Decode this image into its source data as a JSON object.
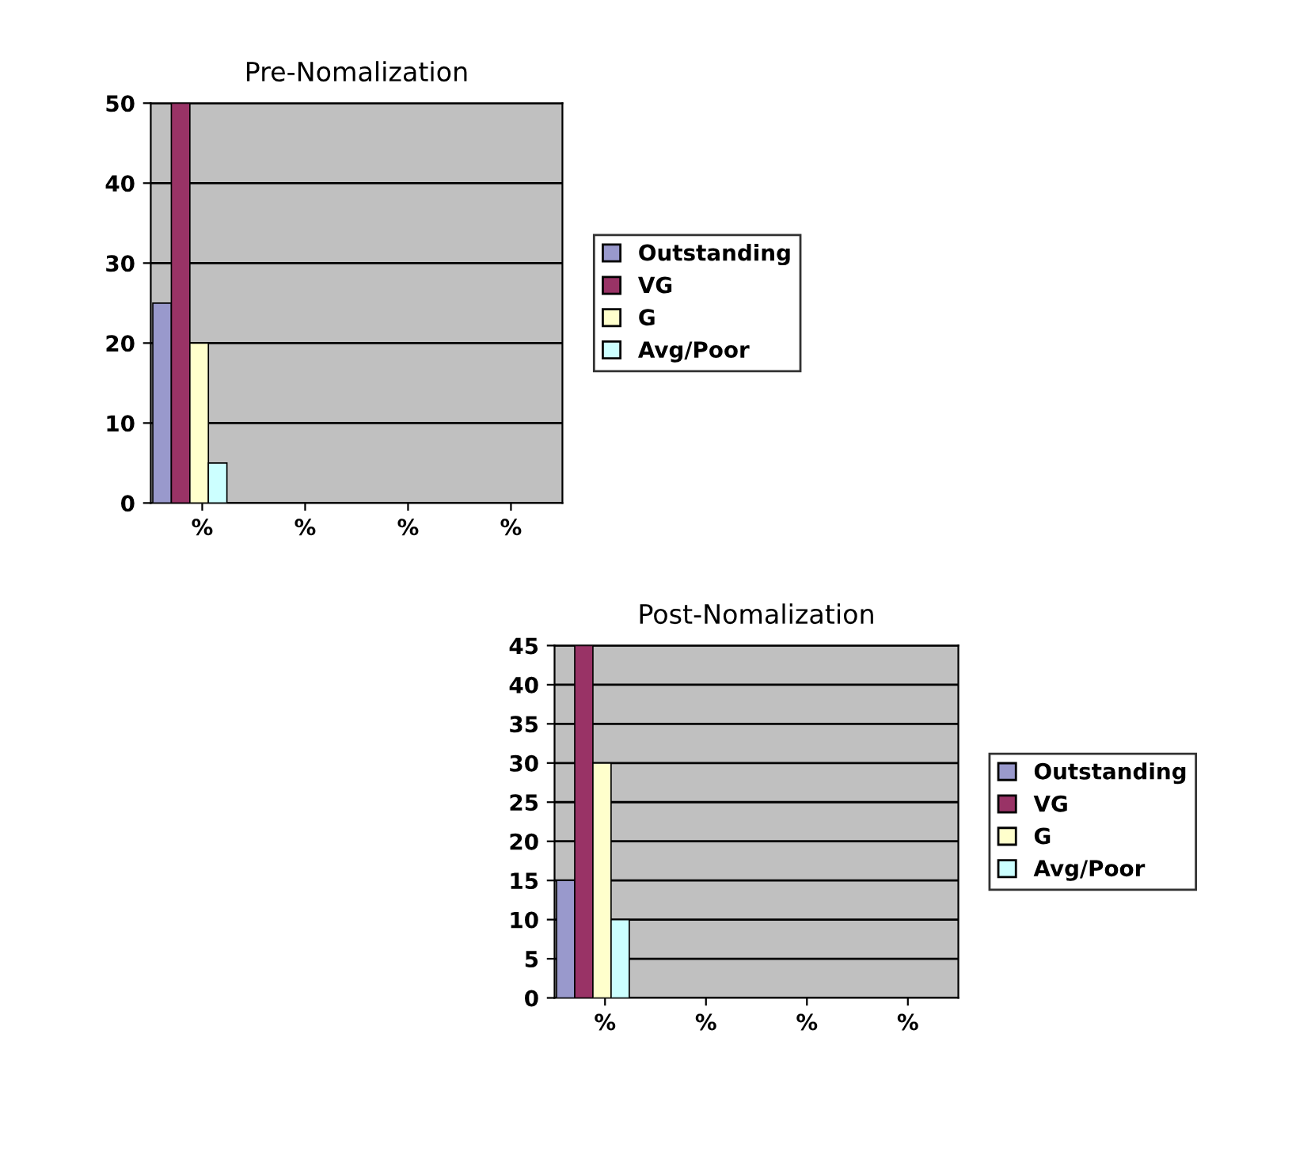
{
  "chart_data": [
    {
      "type": "bar",
      "title": "Pre-Nomalization",
      "categories": [
        "%",
        "%",
        "%",
        "%"
      ],
      "ylim": [
        0,
        50
      ],
      "yticks": [
        0,
        10,
        20,
        30,
        40,
        50
      ],
      "grid": "y",
      "legend": "right",
      "series": [
        {
          "name": "Outstanding",
          "color": "#9999cc",
          "values": [
            25,
            null,
            null,
            null
          ]
        },
        {
          "name": "VG",
          "color": "#993366",
          "values": [
            50,
            null,
            null,
            null
          ]
        },
        {
          "name": "G",
          "color": "#ffffcc",
          "values": [
            20,
            null,
            null,
            null
          ]
        },
        {
          "name": "Avg/Poor",
          "color": "#ccffff",
          "values": [
            5,
            null,
            null,
            null
          ]
        }
      ]
    },
    {
      "type": "bar",
      "title": "Post-Nomalization",
      "categories": [
        "%",
        "%",
        "%",
        "%"
      ],
      "ylim": [
        0,
        45
      ],
      "yticks": [
        0,
        5,
        10,
        15,
        20,
        25,
        30,
        35,
        40,
        45
      ],
      "grid": "y",
      "legend": "right",
      "series": [
        {
          "name": "Outstanding",
          "color": "#9999cc",
          "values": [
            15,
            null,
            null,
            null
          ]
        },
        {
          "name": "VG",
          "color": "#993366",
          "values": [
            45,
            null,
            null,
            null
          ]
        },
        {
          "name": "G",
          "color": "#ffffcc",
          "values": [
            30,
            null,
            null,
            null
          ]
        },
        {
          "name": "Avg/Poor",
          "color": "#ccffff",
          "values": [
            10,
            null,
            null,
            null
          ]
        }
      ]
    }
  ]
}
